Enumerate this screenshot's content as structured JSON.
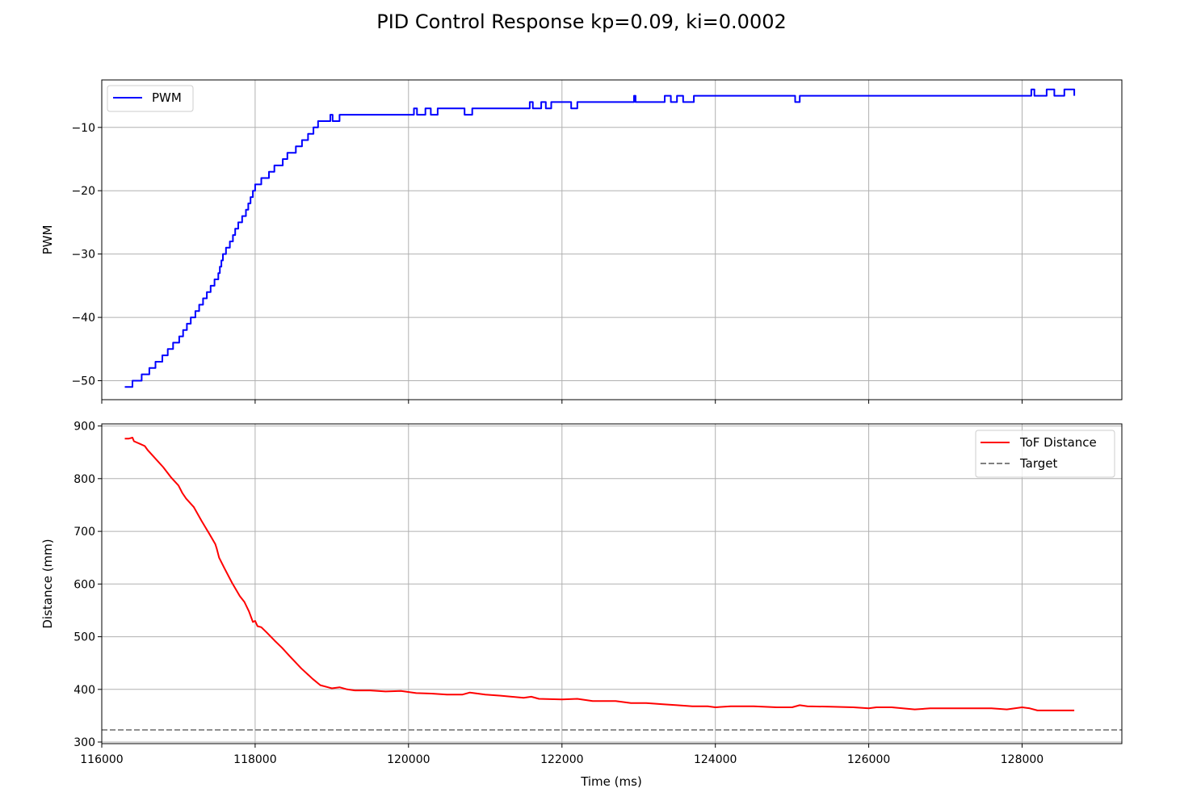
{
  "figure_title": "PID Control Response kp=0.09, ki=0.0002",
  "chart_data": [
    {
      "type": "line",
      "ylabel": "PWM",
      "xlim": [
        116000,
        129300
      ],
      "ylim": [
        -53,
        -2.5
      ],
      "xticks": [
        116000,
        118000,
        120000,
        122000,
        124000,
        126000,
        128000
      ],
      "yticks": [
        -50,
        -40,
        -30,
        -20,
        -10
      ],
      "ytick_labels": [
        "−50",
        "−40",
        "−30",
        "−20",
        "−10"
      ],
      "show_xtick_labels": false,
      "grid": true,
      "legend_position": "upper left",
      "series": [
        {
          "name": "PWM",
          "color": "#0000ff",
          "style": "step",
          "points": [
            [
              116300,
              -51
            ],
            [
              116400,
              -50
            ],
            [
              116520,
              -49
            ],
            [
              116620,
              -48
            ],
            [
              116700,
              -47
            ],
            [
              116790,
              -46
            ],
            [
              116860,
              -45
            ],
            [
              116930,
              -44
            ],
            [
              117010,
              -43
            ],
            [
              117060,
              -42
            ],
            [
              117110,
              -41
            ],
            [
              117160,
              -40
            ],
            [
              117220,
              -39
            ],
            [
              117270,
              -38
            ],
            [
              117320,
              -37
            ],
            [
              117370,
              -36
            ],
            [
              117420,
              -35
            ],
            [
              117470,
              -34
            ],
            [
              117520,
              -33
            ],
            [
              117540,
              -32
            ],
            [
              117560,
              -31
            ],
            [
              117580,
              -30
            ],
            [
              117620,
              -29
            ],
            [
              117670,
              -28
            ],
            [
              117710,
              -27
            ],
            [
              117740,
              -26
            ],
            [
              117780,
              -25
            ],
            [
              117830,
              -24
            ],
            [
              117880,
              -23
            ],
            [
              117910,
              -22
            ],
            [
              117940,
              -21
            ],
            [
              117970,
              -20
            ],
            [
              118000,
              -19
            ],
            [
              118050,
              -19
            ],
            [
              118080,
              -18
            ],
            [
              118180,
              -17
            ],
            [
              118250,
              -16
            ],
            [
              118360,
              -15
            ],
            [
              118420,
              -14
            ],
            [
              118530,
              -13
            ],
            [
              118610,
              -12
            ],
            [
              118690,
              -11
            ],
            [
              118760,
              -10
            ],
            [
              118820,
              -9
            ],
            [
              118950,
              -9
            ],
            [
              118980,
              -8
            ],
            [
              119010,
              -9
            ],
            [
              119100,
              -8
            ],
            [
              120050,
              -8
            ],
            [
              120070,
              -7
            ],
            [
              120110,
              -8
            ],
            [
              120220,
              -7
            ],
            [
              120290,
              -8
            ],
            [
              120380,
              -7
            ],
            [
              120700,
              -7
            ],
            [
              120730,
              -8
            ],
            [
              120830,
              -7
            ],
            [
              121560,
              -7
            ],
            [
              121580,
              -6
            ],
            [
              121620,
              -7
            ],
            [
              121730,
              -6
            ],
            [
              121790,
              -7
            ],
            [
              121860,
              -6
            ],
            [
              122090,
              -6
            ],
            [
              122120,
              -7
            ],
            [
              122200,
              -6
            ],
            [
              122920,
              -6
            ],
            [
              122940,
              -5
            ],
            [
              122960,
              -6
            ],
            [
              123300,
              -6
            ],
            [
              123340,
              -5
            ],
            [
              123420,
              -6
            ],
            [
              123500,
              -5
            ],
            [
              123580,
              -6
            ],
            [
              123690,
              -6
            ],
            [
              123720,
              -5
            ],
            [
              125020,
              -5
            ],
            [
              125040,
              -6
            ],
            [
              125100,
              -5
            ],
            [
              128100,
              -5
            ],
            [
              128120,
              -4
            ],
            [
              128160,
              -5
            ],
            [
              128300,
              -5
            ],
            [
              128320,
              -4
            ],
            [
              128400,
              -4
            ],
            [
              128420,
              -5
            ],
            [
              128530,
              -5
            ],
            [
              128550,
              -4
            ],
            [
              128660,
              -4
            ],
            [
              128680,
              -5
            ]
          ]
        }
      ]
    },
    {
      "type": "line",
      "xlabel": "Time (ms)",
      "ylabel": "Distance (mm)",
      "xlim": [
        116000,
        129300
      ],
      "ylim": [
        297,
        904
      ],
      "xticks": [
        116000,
        118000,
        120000,
        122000,
        124000,
        126000,
        128000
      ],
      "yticks": [
        300,
        400,
        500,
        600,
        700,
        800,
        900
      ],
      "grid": true,
      "legend_position": "upper right",
      "series": [
        {
          "name": "ToF Distance",
          "color": "#ff0000",
          "style": "line",
          "points": [
            [
              116300,
              876
            ],
            [
              116350,
              876
            ],
            [
              116400,
              878
            ],
            [
              116420,
              871
            ],
            [
              116500,
              866
            ],
            [
              116560,
              862
            ],
            [
              116600,
              854
            ],
            [
              116700,
              838
            ],
            [
              116800,
              822
            ],
            [
              116900,
              803
            ],
            [
              117000,
              787
            ],
            [
              117050,
              773
            ],
            [
              117100,
              762
            ],
            [
              117200,
              746
            ],
            [
              117300,
              720
            ],
            [
              117400,
              696
            ],
            [
              117480,
              676
            ],
            [
              117500,
              667
            ],
            [
              117530,
              650
            ],
            [
              117600,
              630
            ],
            [
              117700,
              602
            ],
            [
              117800,
              577
            ],
            [
              117860,
              566
            ],
            [
              117920,
              548
            ],
            [
              117970,
              528
            ],
            [
              118000,
              530
            ],
            [
              118030,
              520
            ],
            [
              118080,
              518
            ],
            [
              118150,
              508
            ],
            [
              118250,
              493
            ],
            [
              118350,
              479
            ],
            [
              118450,
              463
            ],
            [
              118600,
              440
            ],
            [
              118750,
              420
            ],
            [
              118850,
              408
            ],
            [
              118950,
              404
            ],
            [
              119000,
              402
            ],
            [
              119100,
              404
            ],
            [
              119200,
              400
            ],
            [
              119300,
              398
            ],
            [
              119500,
              398
            ],
            [
              119700,
              396
            ],
            [
              119900,
              397
            ],
            [
              120100,
              393
            ],
            [
              120300,
              392
            ],
            [
              120500,
              390
            ],
            [
              120700,
              390
            ],
            [
              120800,
              394
            ],
            [
              121000,
              390
            ],
            [
              121200,
              388
            ],
            [
              121500,
              384
            ],
            [
              121600,
              386
            ],
            [
              121700,
              382
            ],
            [
              122000,
              381
            ],
            [
              122200,
              382
            ],
            [
              122400,
              378
            ],
            [
              122700,
              378
            ],
            [
              122900,
              374
            ],
            [
              123100,
              374
            ],
            [
              123300,
              372
            ],
            [
              123500,
              370
            ],
            [
              123700,
              368
            ],
            [
              123900,
              368
            ],
            [
              124000,
              366
            ],
            [
              124200,
              368
            ],
            [
              124500,
              368
            ],
            [
              124800,
              366
            ],
            [
              125000,
              366
            ],
            [
              125100,
              370
            ],
            [
              125200,
              368
            ],
            [
              125500,
              367
            ],
            [
              125800,
              366
            ],
            [
              126000,
              364
            ],
            [
              126100,
              366
            ],
            [
              126300,
              366
            ],
            [
              126600,
              362
            ],
            [
              126800,
              364
            ],
            [
              127000,
              364
            ],
            [
              127300,
              364
            ],
            [
              127600,
              364
            ],
            [
              127800,
              362
            ],
            [
              128000,
              366
            ],
            [
              128100,
              364
            ],
            [
              128200,
              360
            ],
            [
              128400,
              360
            ],
            [
              128600,
              360
            ],
            [
              128680,
              360
            ]
          ]
        },
        {
          "name": "Target",
          "color": "#808080",
          "style": "dashed",
          "constant": 323
        }
      ]
    }
  ]
}
